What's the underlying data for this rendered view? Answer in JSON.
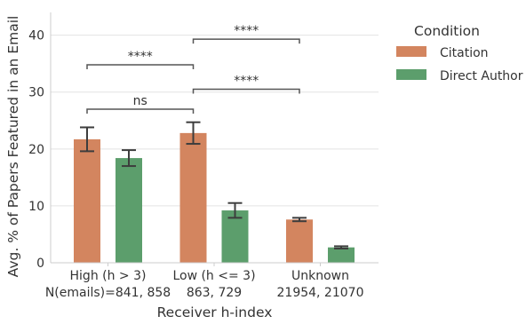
{
  "chart_data": {
    "type": "bar",
    "categories": [
      "High (h > 3)",
      "Low (h <= 3)",
      "Unknown"
    ],
    "category_counts": [
      "N(emails)=841, 858",
      "863, 729",
      "21954, 21070"
    ],
    "series": [
      {
        "name": "Citation",
        "color": "#d3855f",
        "values": [
          21.7,
          22.8,
          7.6
        ],
        "error": [
          2.1,
          1.9,
          0.3
        ]
      },
      {
        "name": "Direct Author",
        "color": "#5c9e6c",
        "values": [
          18.4,
          9.2,
          2.7
        ],
        "error": [
          1.4,
          1.3,
          0.2
        ]
      }
    ],
    "xlabel": "Receiver h-index",
    "ylabel": "Avg. % of Papers Featured in an Email",
    "ylim": [
      0,
      44
    ],
    "yticks": [
      0,
      10,
      20,
      30,
      40
    ],
    "grid": "horizontal",
    "legend": {
      "title": "Condition",
      "placement": "right-outside"
    },
    "annotations": [
      {
        "from": [
          0,
          0
        ],
        "to": [
          1,
          0
        ],
        "level": 27.0,
        "label": "ns"
      },
      {
        "from": [
          1,
          0
        ],
        "to": [
          2,
          0
        ],
        "level": 30.5,
        "label": "****"
      },
      {
        "from": [
          0,
          0
        ],
        "to": [
          1,
          0
        ],
        "level": 34.8,
        "label": "****"
      },
      {
        "from": [
          1,
          0
        ],
        "to": [
          2,
          0
        ],
        "level": 39.3,
        "label": "****"
      }
    ]
  }
}
